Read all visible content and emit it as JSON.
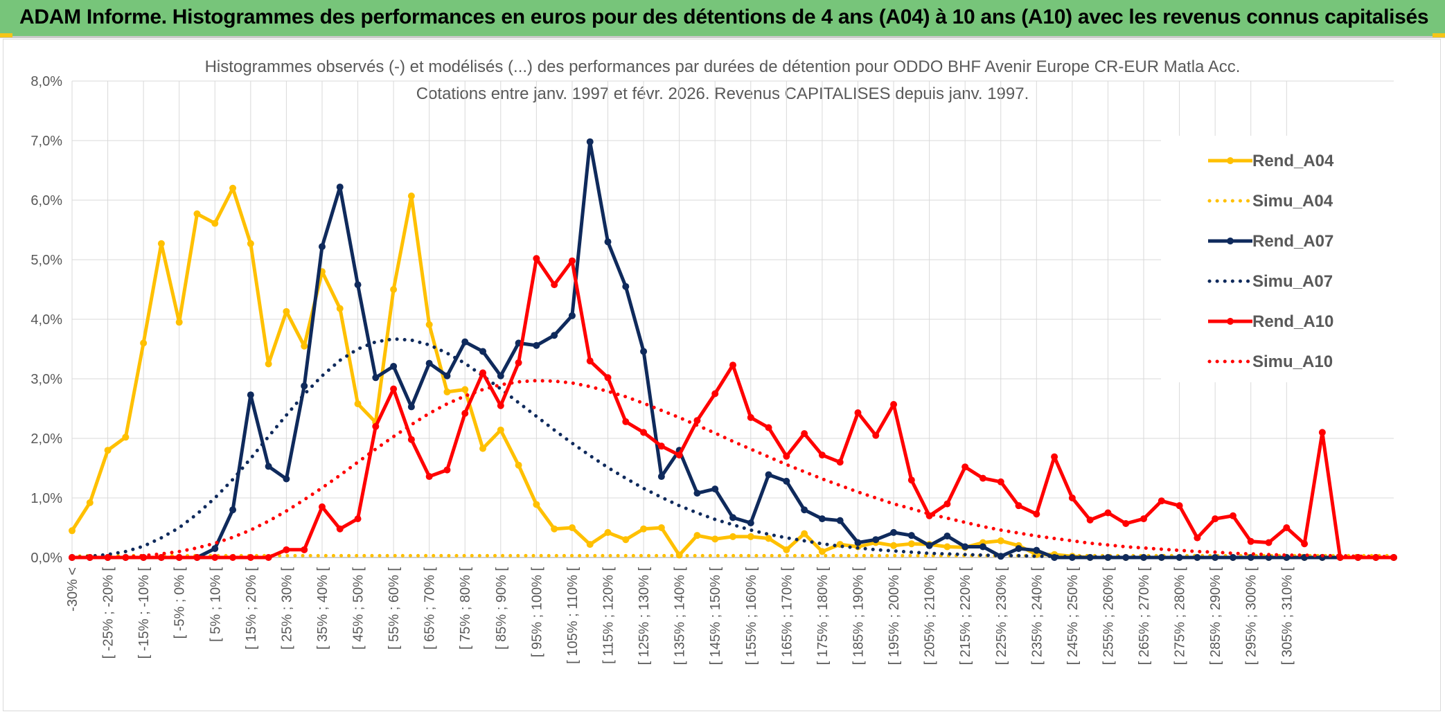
{
  "banner": {
    "title": "ADAM Informe. Histogrammes des performances en euros pour des détentions de 4 ans (A04) à 10 ans (A10) avec les revenus connus capitalisés"
  },
  "colors": {
    "banner_bg": "#77c57a",
    "corner_accent": "#f5c518",
    "A04": "#ffc000",
    "A07": "#0f2a5c",
    "A10": "#ff0000",
    "grid": "#d9d9d9",
    "text": "#595959"
  },
  "chart_data": {
    "type": "line",
    "title_line1": "Histogrammes observés (-) et modélisés (...) des performances par durées de détention pour ODDO BHF Avenir Europe CR-EUR Matla Acc.",
    "title_line2": "Cotations entre janv. 1997 et févr. 2026. Revenus CAPITALISES depuis janv. 1997.",
    "xlabel": "",
    "ylabel": "",
    "ylim": [
      0,
      8
    ],
    "y_ticks": [
      "0,0%",
      "1,0%",
      "2,0%",
      "3,0%",
      "4,0%",
      "5,0%",
      "6,0%",
      "7,0%",
      "8,0%"
    ],
    "x_tick_labels": [
      "-30% <",
      "[ -25% ; -20% [",
      "[ -15% ; -10% [",
      "[ -5% ; 0% [",
      "[ 5% ; 10% [",
      "[ 15% ; 20% [",
      "[ 25% ; 30% [",
      "[ 35% ; 40% [",
      "[ 45% ; 50% [",
      "[ 55% ; 60% [",
      "[ 65% ; 70% [",
      "[ 75% ; 80% [",
      "[ 85% ; 90% [",
      "[ 95% ; 100% [",
      "[ 105% ; 110% [",
      "[ 115% ; 120% [",
      "[ 125% ; 130% [",
      "[ 135% ; 140% [",
      "[ 145% ; 150% [",
      "[ 155% ; 160% [",
      "[ 165% ; 170% [",
      "[ 175% ; 180% [",
      "[ 185% ; 190% [",
      "[ 195% ; 200% [",
      "[ 205% ; 210% [",
      "[ 215% ; 220% [",
      "[ 225% ; 230% [",
      "[ 235% ; 240% [",
      "[ 245% ; 250% [",
      "[ 255% ; 260% [",
      "[ 265% ; 270% [",
      "[ 275% ; 280% [",
      "[ 285% ; 290% [",
      "[ 295% ; 300% [",
      "[ 305% ; 310% ["
    ],
    "grid": true,
    "legend_position": "right",
    "series": [
      {
        "name": "Rend_A04",
        "style": "solid",
        "color": "#ffc000",
        "values": [
          0.45,
          0.92,
          1.8,
          2.02,
          3.6,
          5.27,
          3.95,
          5.77,
          5.61,
          6.2,
          5.27,
          3.25,
          4.13,
          3.55,
          4.8,
          4.18,
          2.58,
          2.27,
          4.5,
          6.07,
          3.91,
          2.78,
          2.82,
          1.83,
          2.14,
          1.55,
          0.89,
          0.48,
          0.5,
          0.22,
          0.42,
          0.3,
          0.48,
          0.5,
          0.04,
          0.37,
          0.31,
          0.35,
          0.35,
          0.32,
          0.13,
          0.4,
          0.1,
          0.22,
          0.18,
          0.25,
          0.2,
          0.23,
          0.22,
          0.18,
          0.17,
          0.25,
          0.28,
          0.2,
          0.05,
          0.05,
          0.02,
          0,
          0,
          0,
          0,
          0,
          0,
          0,
          0,
          0,
          0,
          0,
          0,
          0,
          0,
          0,
          0,
          0,
          0
        ]
      },
      {
        "name": "Simu_A04",
        "style": "dotted",
        "color": "#ffc000",
        "values": [
          0.02,
          0.03,
          0.03,
          0.03,
          0.03,
          0.03,
          0.03,
          0.03,
          0.03,
          0.03,
          0.03,
          0.03,
          0.03,
          0.03,
          0.03,
          0.03,
          0.03,
          0.03,
          0.03,
          0.03,
          0.03,
          0.03,
          0.03,
          0.03,
          0.03,
          0.03,
          0.03,
          0.03,
          0.03,
          0.03,
          0.03,
          0.03,
          0.03,
          0.03,
          0.03,
          0.03,
          0.03,
          0.03,
          0.03,
          0.03,
          0.03,
          0.03,
          0.03,
          0.03,
          0.03,
          0.03,
          0.03,
          0.03,
          0.03,
          0.03,
          0.03,
          0.03,
          0.03,
          0.03,
          0.03,
          0.03,
          0.03,
          0.03,
          0.03,
          0.03,
          0.03,
          0.03,
          0.03,
          0.03,
          0.03,
          0.03,
          0.03,
          0.03,
          0.03,
          0.03,
          0.03,
          0.03,
          0.03,
          0.03,
          0.03
        ]
      },
      {
        "name": "Rend_A07",
        "style": "solid",
        "color": "#0f2a5c",
        "values": [
          0,
          0,
          0,
          0,
          0,
          0,
          0,
          0,
          0.15,
          0.8,
          2.73,
          1.53,
          1.32,
          2.88,
          5.22,
          6.22,
          4.58,
          3.02,
          3.21,
          2.53,
          3.26,
          3.05,
          3.62,
          3.46,
          3.05,
          3.6,
          3.56,
          3.73,
          4.06,
          6.98,
          5.3,
          4.55,
          3.46,
          1.36,
          1.8,
          1.08,
          1.15,
          0.67,
          0.58,
          1.39,
          1.28,
          0.8,
          0.65,
          0.62,
          0.25,
          0.3,
          0.42,
          0.37,
          0.2,
          0.36,
          0.18,
          0.18,
          0.02,
          0.15,
          0.12,
          0,
          0,
          0,
          0,
          0,
          0,
          0,
          0,
          0,
          0,
          0,
          0,
          0,
          0,
          0,
          0,
          0,
          0,
          0,
          0
        ]
      },
      {
        "name": "Simu_A07",
        "style": "dotted",
        "color": "#0f2a5c",
        "values": [
          0,
          0.02,
          0.05,
          0.1,
          0.19,
          0.33,
          0.5,
          0.73,
          1.0,
          1.31,
          1.66,
          2.03,
          2.39,
          2.74,
          3.05,
          3.31,
          3.5,
          3.62,
          3.67,
          3.65,
          3.57,
          3.43,
          3.26,
          3.05,
          2.83,
          2.6,
          2.37,
          2.14,
          1.92,
          1.71,
          1.51,
          1.33,
          1.16,
          1.01,
          0.87,
          0.75,
          0.64,
          0.55,
          0.46,
          0.39,
          0.33,
          0.28,
          0.23,
          0.19,
          0.16,
          0.13,
          0.11,
          0.09,
          0.07,
          0.06,
          0.05,
          0.04,
          0.03,
          0.03,
          0.02,
          0.02,
          0.01,
          0.01,
          0.01,
          0.01,
          0.01,
          0.0,
          0.0,
          0.0,
          0.0,
          0.0,
          0.0,
          0.0,
          0.0,
          0.0,
          0.0,
          0.0,
          0.0,
          0.0,
          0.0
        ]
      },
      {
        "name": "Rend_A10",
        "style": "solid",
        "color": "#ff0000",
        "values": [
          0,
          0,
          0,
          0,
          0,
          0,
          0,
          0,
          0,
          0,
          0,
          0,
          0.13,
          0.13,
          0.85,
          0.48,
          0.65,
          2.2,
          2.83,
          1.98,
          1.36,
          1.47,
          2.42,
          3.1,
          2.55,
          3.27,
          5.02,
          4.58,
          4.98,
          3.3,
          3.02,
          2.28,
          2.1,
          1.87,
          1.72,
          2.3,
          2.75,
          3.23,
          2.35,
          2.18,
          1.7,
          2.08,
          1.72,
          1.6,
          2.43,
          2.05,
          2.57,
          1.3,
          0.7,
          0.9,
          1.52,
          1.33,
          1.27,
          0.87,
          0.73,
          1.69,
          1.0,
          0.63,
          0.75,
          0.57,
          0.65,
          0.95,
          0.87,
          0.33,
          0.65,
          0.7,
          0.27,
          0.25,
          0.5,
          0.23,
          2.1,
          0,
          0,
          0,
          0
        ]
      },
      {
        "name": "Simu_A10",
        "style": "dotted",
        "color": "#ff0000",
        "values": [
          0,
          0,
          0,
          0.01,
          0.03,
          0.06,
          0.1,
          0.16,
          0.24,
          0.34,
          0.46,
          0.61,
          0.78,
          0.97,
          1.17,
          1.38,
          1.6,
          1.82,
          2.03,
          2.23,
          2.42,
          2.58,
          2.71,
          2.82,
          2.9,
          2.95,
          2.97,
          2.96,
          2.93,
          2.87,
          2.79,
          2.7,
          2.59,
          2.47,
          2.35,
          2.22,
          2.09,
          1.95,
          1.82,
          1.69,
          1.56,
          1.44,
          1.32,
          1.21,
          1.1,
          1.0,
          0.9,
          0.82,
          0.73,
          0.66,
          0.59,
          0.52,
          0.46,
          0.41,
          0.36,
          0.32,
          0.28,
          0.24,
          0.21,
          0.18,
          0.16,
          0.14,
          0.12,
          0.1,
          0.09,
          0.07,
          0.06,
          0.05,
          0.04,
          0.04,
          0.03,
          0.03,
          0.02,
          0.02,
          0.01
        ]
      }
    ]
  }
}
